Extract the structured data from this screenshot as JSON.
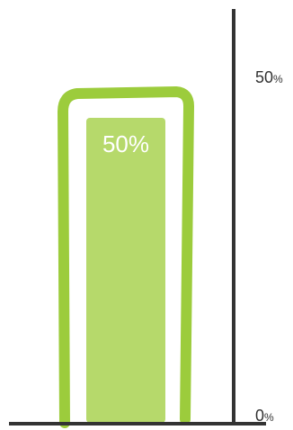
{
  "chart_data": {
    "type": "bar",
    "categories": [
      ""
    ],
    "values": [
      50
    ],
    "value_labels": [
      "50%"
    ],
    "title": "",
    "xlabel": "",
    "ylabel": "",
    "ylim": [
      0,
      50
    ],
    "y_ticks": [
      {
        "value": 0,
        "label": "0",
        "suffix": "%"
      },
      {
        "value": 50,
        "label": "50",
        "suffix": "%"
      }
    ],
    "grid": false,
    "legend": "none",
    "colors": {
      "outline": "#9ccc3c",
      "fill": "#b6d96b",
      "axis": "#333333",
      "tick_text": "#333333",
      "bar_text": "#ffffff"
    }
  }
}
